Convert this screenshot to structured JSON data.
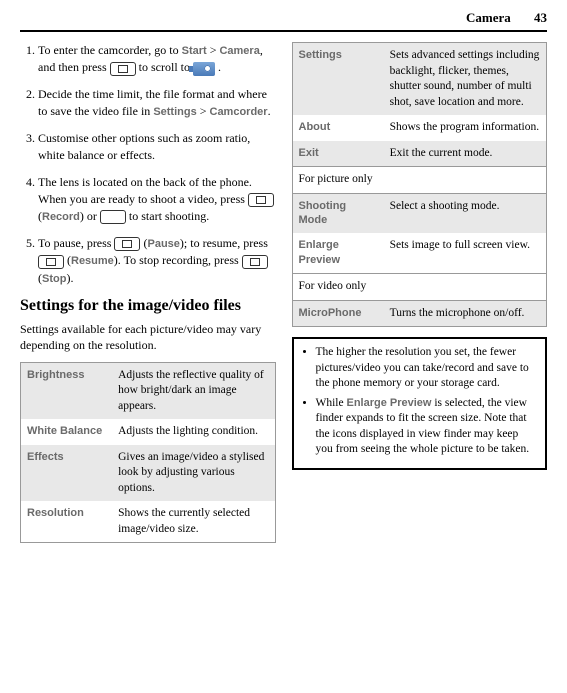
{
  "header": {
    "section": "Camera",
    "page": "43"
  },
  "steps": [
    {
      "pre": "To enter the camcorder, go to ",
      "kw1": "Start",
      "mid1": " > ",
      "kw2": "Camera",
      "mid2": ", and then press ",
      "icon1": "key",
      "mid3": " to scroll to ",
      "icon2": "cam",
      "post": " ."
    },
    {
      "pre": "Decide the time limit, the file format and where to save the video file in ",
      "kw1": "Settings",
      "mid1": " > ",
      "kw2": "Camcorder",
      "post": "."
    },
    {
      "pre": "Customise other options such as zoom ratio, white balance or effects."
    },
    {
      "pre": "The lens is located on the back of the phone. When you are ready to shoot a video, press ",
      "icon1": "key",
      "mid1": " (",
      "kw1": "Record",
      "mid2": ") or ",
      "icon2": "key-plain",
      "mid3": " to start shooting."
    },
    {
      "pre": "To pause, press ",
      "icon1": "key",
      "mid1": " (",
      "kw1": "Pause",
      "mid2": "); to resume, press ",
      "icon2": "key",
      "mid3": " (",
      "kw2": "Resume",
      "mid4": "). To stop recording, press ",
      "icon3": "key",
      "mid5": " (",
      "kw3": "Stop",
      "post": ")."
    }
  ],
  "heading": "Settings for the image/video files",
  "intro": "Settings available for each picture/video may vary depending on the resolution.",
  "table1": [
    {
      "label": "Brightness",
      "desc": "Adjusts the reflective quality of how bright/dark an image appears."
    },
    {
      "label": "White Balance",
      "desc": "Adjusts the lighting condition."
    },
    {
      "label": "Effects",
      "desc": "Gives an image/video a stylised look by adjusting various options."
    },
    {
      "label": "Resolution",
      "desc": "Shows the currently selected image/video size."
    }
  ],
  "table2": {
    "rows1": [
      {
        "label": "Settings",
        "desc": "Sets advanced settings including backlight, flicker, themes, shutter sound, number of multi shot, save location and more."
      },
      {
        "label": "About",
        "desc": "Shows the program information."
      },
      {
        "label": "Exit",
        "desc": "Exit the current mode."
      }
    ],
    "section1": "For picture only",
    "rows2": [
      {
        "label": "Shooting Mode",
        "desc": "Select a shooting mode."
      },
      {
        "label": "Enlarge Preview",
        "desc": "Sets image to full screen view."
      }
    ],
    "section2": "For video only",
    "rows3": [
      {
        "label": "MicroPhone",
        "desc": "Turns the microphone on/off."
      }
    ]
  },
  "notes": {
    "n1": "The higher the resolution you set, the fewer pictures/video you can take/record and save to the phone memory or your storage card.",
    "n2a": "While ",
    "n2kw": "Enlarge Preview",
    "n2b": " is selected, the view finder expands to fit the screen size. Note that the icons displayed in view finder may keep you from seeing the whole picture to be taken."
  }
}
